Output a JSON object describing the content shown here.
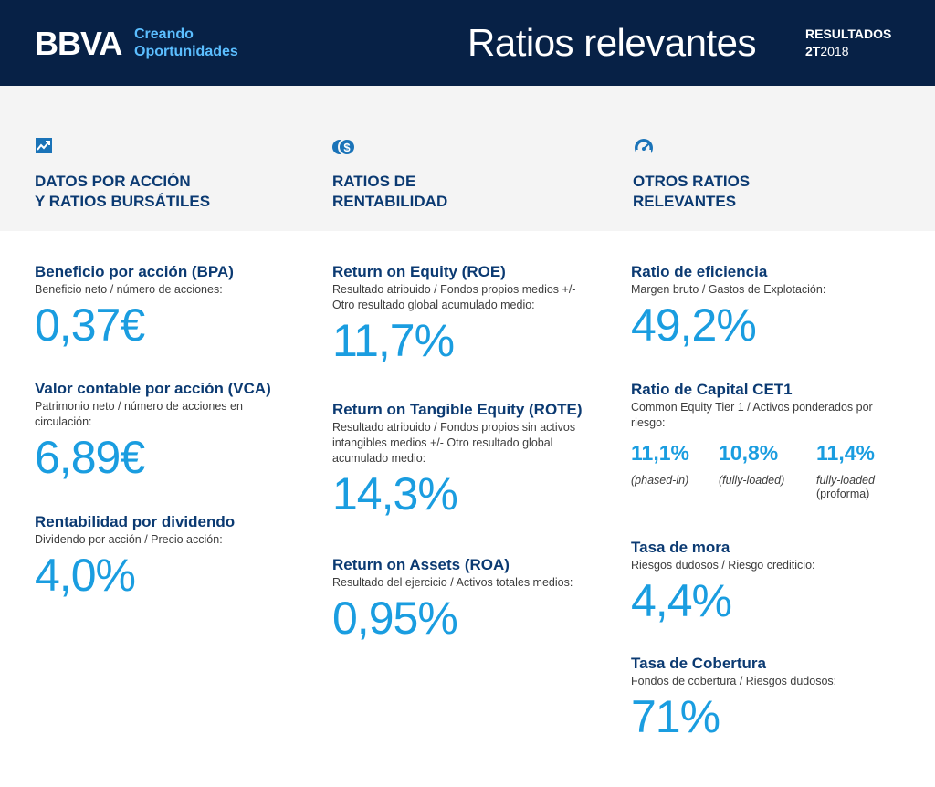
{
  "header": {
    "logo": "BBVA",
    "tagline_line1": "Creando",
    "tagline_line2": "Oportunidades",
    "title": "Ratios relevantes",
    "results_label": "RESULTADOS",
    "results_quarter": "2T",
    "results_year": "2018",
    "background_color": "#072146",
    "tagline_color": "#5bbeff"
  },
  "columns": [
    {
      "icon": "trending-chart-icon",
      "heading": "DATOS POR ACCIÓN\nY RATIOS BURSÁTILES",
      "metrics": [
        {
          "title": "Beneficio por acción (BPA)",
          "desc": "Beneficio neto / número de acciones:",
          "value": "0,37€"
        },
        {
          "title": "Valor contable por acción (VCA)",
          "desc": "Patrimonio neto / número de acciones en circulación:",
          "value": "6,89€"
        },
        {
          "title": "Rentabilidad por dividendo",
          "desc": "Dividendo por acción / Precio acción:",
          "value": "4,0%"
        }
      ]
    },
    {
      "icon": "coins-dollar-icon",
      "heading": "RATIOS  DE\nRENTABILIDAD",
      "metrics": [
        {
          "title": "Return on Equity (ROE)",
          "desc": "Resultado atribuido / Fondos propios medios +/- Otro resultado global acumulado medio:",
          "value": "11,7%"
        },
        {
          "title": "Return on Tangible Equity (ROTE)",
          "desc": "Resultado atribuido / Fondos propios sin activos intangibles medios +/- Otro resultado global acumulado medio:",
          "value": "14,3%"
        },
        {
          "title": "Return on Assets (ROA)",
          "desc": "Resultado del ejercicio / Activos totales medios:",
          "value": "0,95%"
        }
      ]
    },
    {
      "icon": "speedometer-icon",
      "heading": "OTROS RATIOS\nRELEVANTES",
      "metrics": [
        {
          "title": "Ratio de eficiencia",
          "desc": "Margen bruto / Gastos de Explotación:",
          "value": "49,2%"
        },
        {
          "title": "Ratio de Capital CET1",
          "desc": "Common Equity Tier 1 / Activos ponderados por riesgo:"
        },
        {
          "title": "Tasa de mora",
          "desc": "Riesgos dudosos / Riesgo crediticio:",
          "value": "4,4%"
        },
        {
          "title": "Tasa de  Cobertura",
          "desc": "Fondos de cobertura / Riesgos dudosos:",
          "value": "71%"
        }
      ],
      "cet1_values": [
        {
          "value": "11,1%",
          "label": "(phased-in)",
          "sub": ""
        },
        {
          "value": "10,8%",
          "label": "(fully-loaded)",
          "sub": ""
        },
        {
          "value": "11,4%",
          "label": "fully-loaded",
          "sub": "(proforma)"
        }
      ]
    }
  ],
  "colors": {
    "heading": "#0b3a72",
    "value": "#1a9de0",
    "band": "#f4f4f4"
  }
}
